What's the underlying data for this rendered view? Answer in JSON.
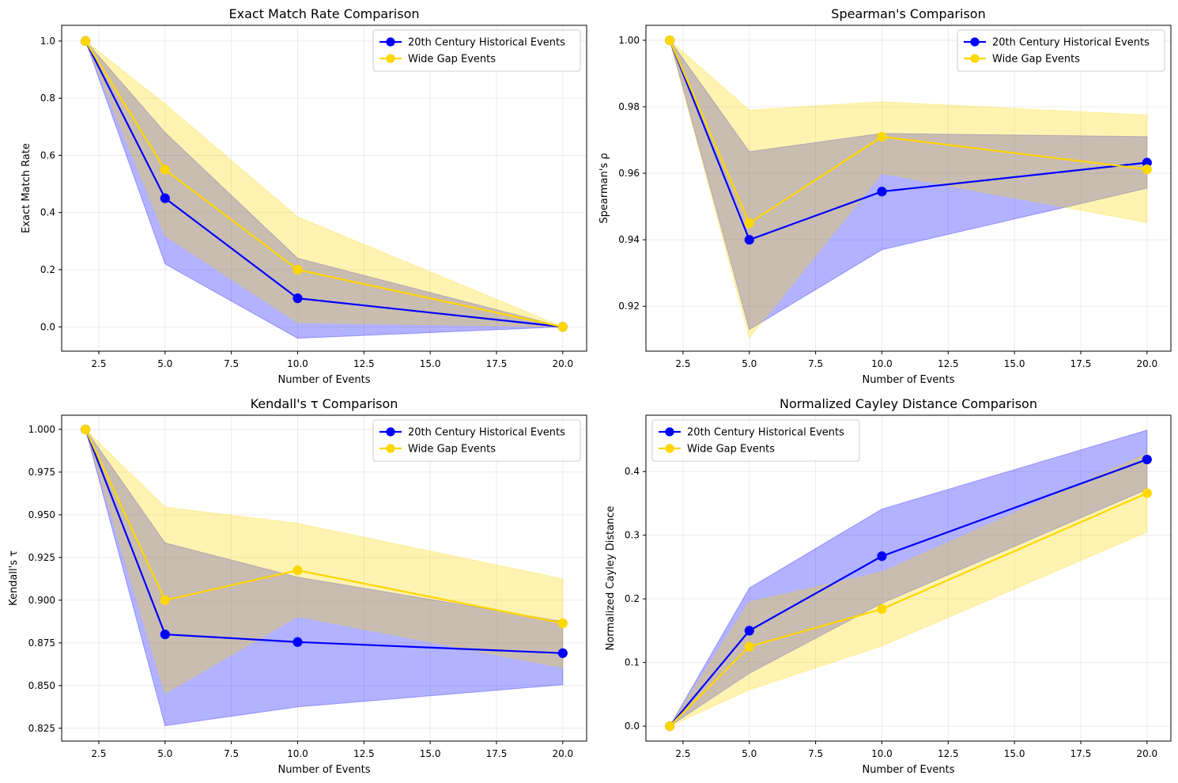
{
  "colors": {
    "series_a": "#0000ff",
    "series_b": "#ffd700",
    "band_a": "#0000ff",
    "band_b": "#ffd700",
    "grid": "#b0b0b0"
  },
  "chart_data": [
    {
      "type": "line",
      "title": "Exact Match Rate Comparison",
      "xlabel": "Number of Events",
      "ylabel": "Exact Match Rate",
      "xlim": [
        1.1,
        20.9
      ],
      "ylim": [
        -0.085,
        1.055
      ],
      "xticks": [
        "2.5",
        "5.0",
        "7.5",
        "10.0",
        "12.5",
        "15.0",
        "17.5",
        "20.0"
      ],
      "xtick_values": [
        2.5,
        5,
        7.5,
        10,
        12.5,
        15,
        17.5,
        20
      ],
      "yticks": [
        "0.0",
        "0.2",
        "0.4",
        "0.6",
        "0.8",
        "1.0"
      ],
      "ytick_values": [
        0,
        0.2,
        0.4,
        0.6,
        0.8,
        1.0
      ],
      "legend_position": "top-right",
      "x": [
        2,
        5,
        10,
        20
      ],
      "series": [
        {
          "name": "20th Century Historical Events",
          "values": [
            1.0,
            0.45,
            0.1,
            0.0
          ],
          "lower": [
            1.0,
            0.22,
            -0.04,
            0.0
          ],
          "upper": [
            1.0,
            0.68,
            0.24,
            0.0
          ]
        },
        {
          "name": "Wide Gap Events",
          "values": [
            1.0,
            0.55,
            0.2,
            0.0
          ],
          "lower": [
            1.0,
            0.32,
            0.015,
            0.0
          ],
          "upper": [
            1.0,
            0.78,
            0.385,
            0.0
          ]
        }
      ]
    },
    {
      "type": "line",
      "title": "Spearman's Comparison",
      "xlabel": "Number of Events",
      "ylabel": "Spearman's ρ",
      "xlim": [
        1.1,
        20.9
      ],
      "ylim": [
        0.9065,
        1.0045
      ],
      "xticks": [
        "2.5",
        "5.0",
        "7.5",
        "10.0",
        "12.5",
        "15.0",
        "17.5",
        "20.0"
      ],
      "xtick_values": [
        2.5,
        5,
        7.5,
        10,
        12.5,
        15,
        17.5,
        20
      ],
      "yticks": [
        "0.92",
        "0.94",
        "0.96",
        "0.98",
        "1.00"
      ],
      "ytick_values": [
        0.92,
        0.94,
        0.96,
        0.98,
        1.0
      ],
      "legend_position": "top-right",
      "x": [
        2,
        5,
        10,
        20
      ],
      "series": [
        {
          "name": "20th Century Historical Events",
          "values": [
            1.0,
            0.94,
            0.9545,
            0.9632
          ],
          "lower": [
            1.0,
            0.913,
            0.937,
            0.9555
          ],
          "upper": [
            1.0,
            0.9665,
            0.972,
            0.971
          ]
        },
        {
          "name": "Wide Gap Events",
          "values": [
            1.0,
            0.945,
            0.971,
            0.9612
          ],
          "lower": [
            1.0,
            0.9105,
            0.96,
            0.9452
          ],
          "upper": [
            1.0,
            0.979,
            0.9815,
            0.9775
          ]
        }
      ]
    },
    {
      "type": "line",
      "title": "Kendall's τ Comparison",
      "xlabel": "Number of Events",
      "ylabel": "Kendall's τ",
      "xlim": [
        1.1,
        20.9
      ],
      "ylim": [
        0.8175,
        1.0083
      ],
      "xticks": [
        "2.5",
        "5.0",
        "7.5",
        "10.0",
        "12.5",
        "15.0",
        "17.5",
        "20.0"
      ],
      "xtick_values": [
        2.5,
        5,
        7.5,
        10,
        12.5,
        15,
        17.5,
        20
      ],
      "yticks": [
        "0.825",
        "0.850",
        "0.875",
        "0.900",
        "0.925",
        "0.950",
        "0.975",
        "1.000"
      ],
      "ytick_values": [
        0.825,
        0.85,
        0.875,
        0.9,
        0.925,
        0.95,
        0.975,
        1.0
      ],
      "legend_position": "top-right",
      "x": [
        2,
        5,
        10,
        20
      ],
      "series": [
        {
          "name": "20th Century Historical Events",
          "values": [
            1.0,
            0.88,
            0.8755,
            0.869
          ],
          "lower": [
            1.0,
            0.8265,
            0.8375,
            0.8505
          ],
          "upper": [
            1.0,
            0.9335,
            0.9135,
            0.8875
          ]
        },
        {
          "name": "Wide Gap Events",
          "values": [
            1.0,
            0.9,
            0.9175,
            0.8865
          ],
          "lower": [
            1.0,
            0.8455,
            0.8905,
            0.8605
          ],
          "upper": [
            1.0,
            0.9545,
            0.945,
            0.9125
          ]
        }
      ]
    },
    {
      "type": "line",
      "title": "Normalized Cayley Distance Comparison",
      "xlabel": "Number of Events",
      "ylabel": "Normalized Cayley Distance",
      "xlim": [
        1.1,
        20.9
      ],
      "ylim": [
        -0.0235,
        0.4885
      ],
      "xticks": [
        "2.5",
        "5.0",
        "7.5",
        "10.0",
        "12.5",
        "15.0",
        "17.5",
        "20.0"
      ],
      "xtick_values": [
        2.5,
        5,
        7.5,
        10,
        12.5,
        15,
        17.5,
        20
      ],
      "yticks": [
        "0.0",
        "0.1",
        "0.2",
        "0.3",
        "0.4"
      ],
      "ytick_values": [
        0,
        0.1,
        0.2,
        0.3,
        0.4
      ],
      "legend_position": "top-left",
      "x": [
        2,
        5,
        10,
        20
      ],
      "series": [
        {
          "name": "20th Century Historical Events",
          "values": [
            0.0,
            0.15,
            0.267,
            0.419
          ],
          "lower": [
            0.0,
            0.083,
            0.193,
            0.372
          ],
          "upper": [
            0.0,
            0.217,
            0.341,
            0.465
          ]
        },
        {
          "name": "Wide Gap Events",
          "values": [
            0.0,
            0.125,
            0.184,
            0.366
          ],
          "lower": [
            0.0,
            0.057,
            0.126,
            0.305
          ],
          "upper": [
            0.0,
            0.195,
            0.242,
            0.428
          ]
        }
      ]
    }
  ]
}
